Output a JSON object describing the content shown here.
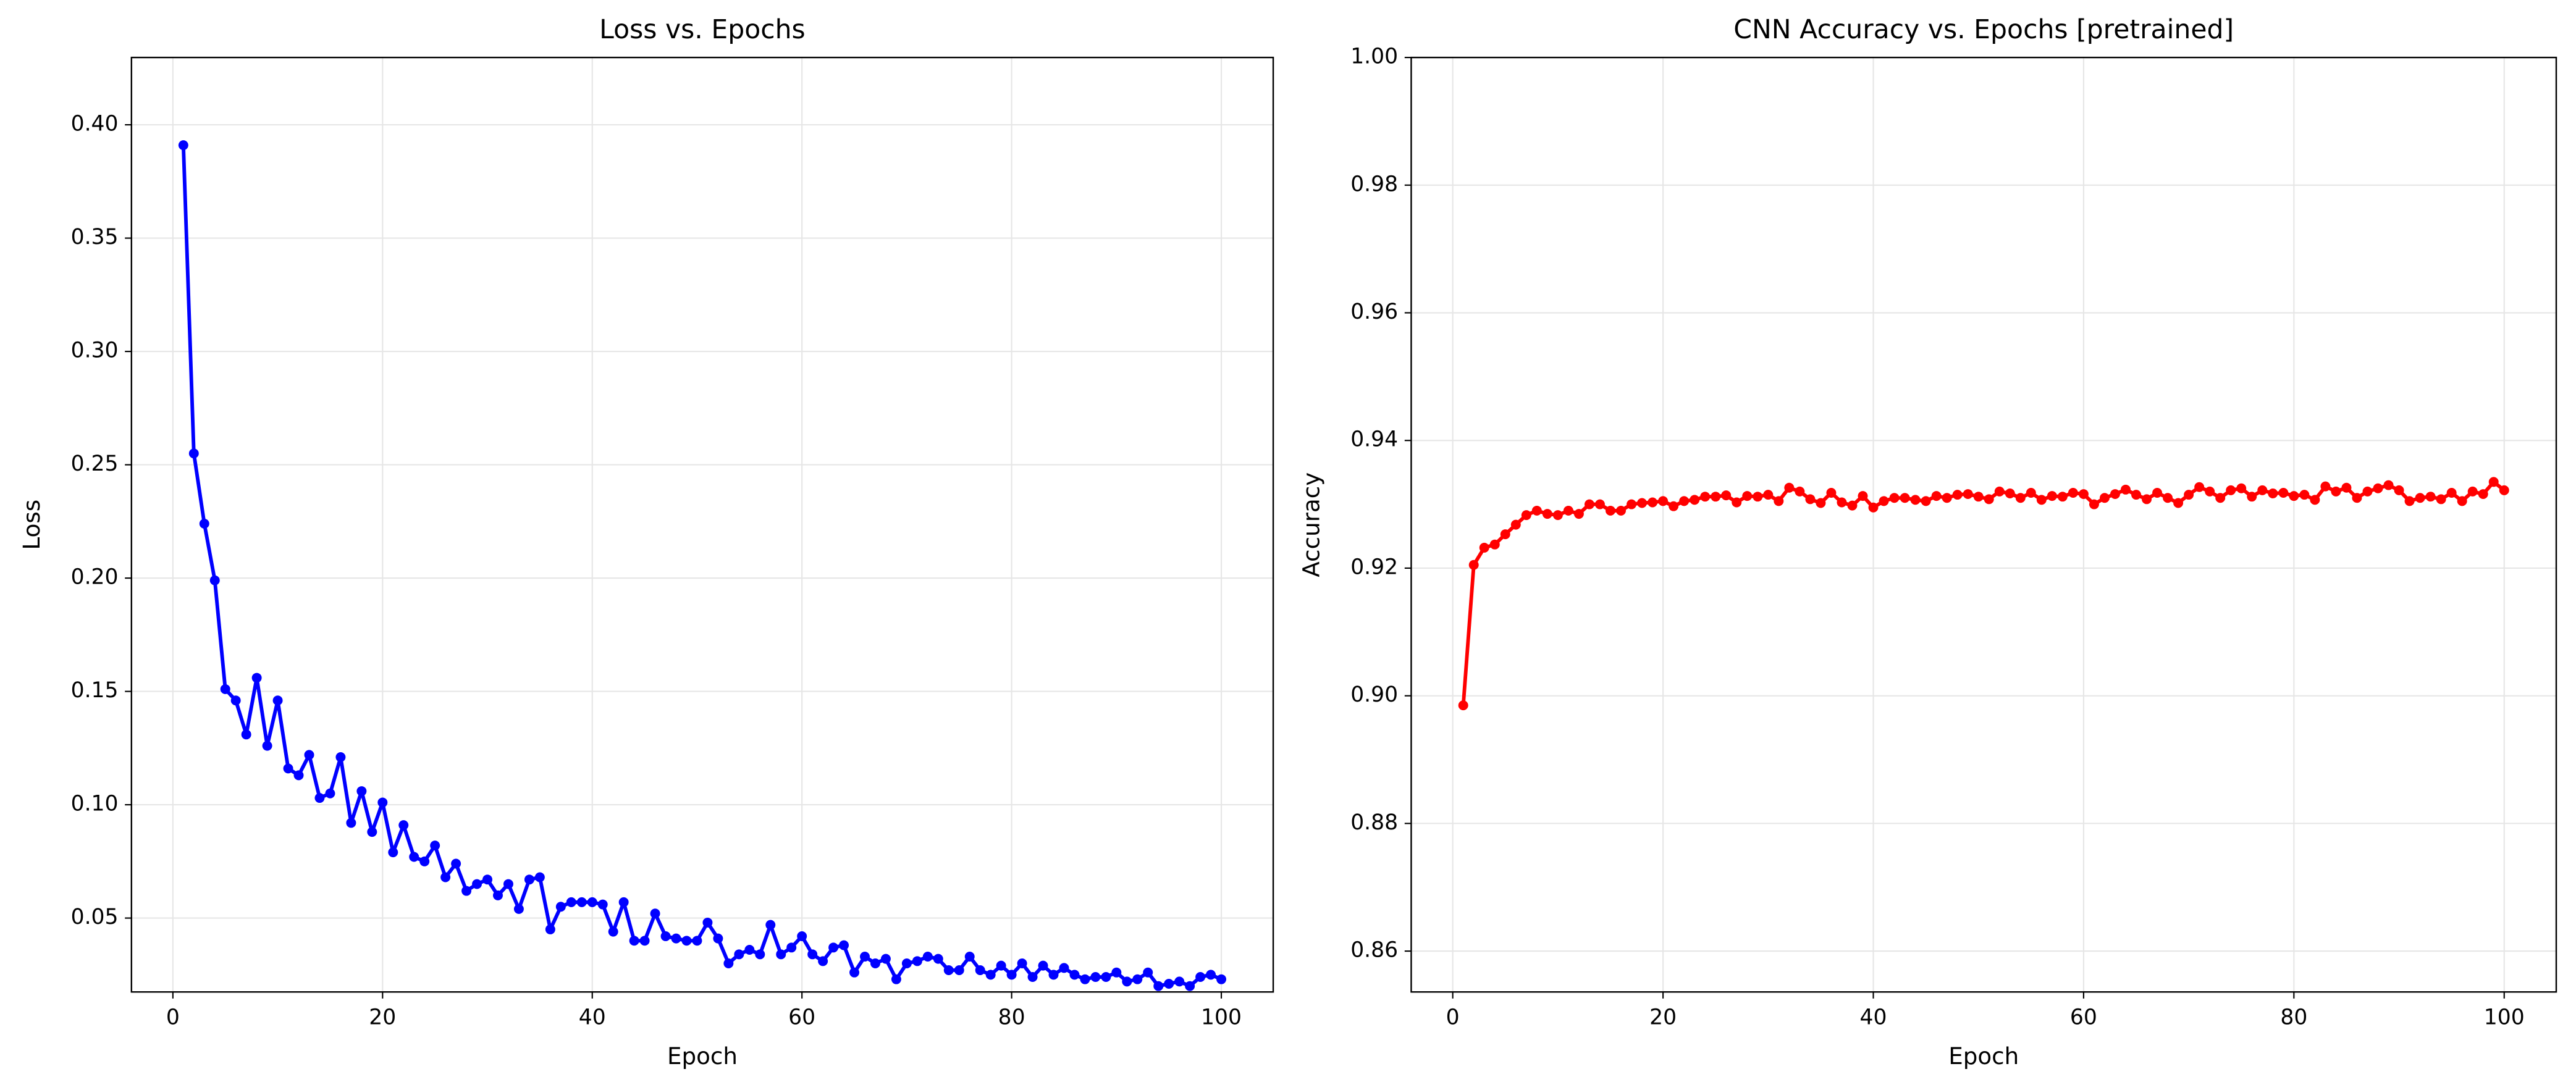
{
  "chart_data": [
    {
      "type": "line",
      "title": "Loss vs. Epochs",
      "xlabel": "Epoch",
      "ylabel": "Loss",
      "color": "#0000ff",
      "grid": true,
      "xlim": [
        -3.95,
        104.95
      ],
      "ylim": [
        0.0174,
        0.4297
      ],
      "xticks": [
        0,
        20,
        40,
        60,
        80,
        100
      ],
      "yticks": [
        0.05,
        {
          "value": 0.1,
          "label": "0.10"
        },
        0.15,
        {
          "value": 0.2,
          "label": "0.20"
        },
        0.25,
        {
          "value": 0.3,
          "label": "0.30"
        },
        0.35,
        {
          "value": 0.4,
          "label": "0.40"
        }
      ],
      "x": [
        1,
        2,
        3,
        4,
        5,
        6,
        7,
        8,
        9,
        10,
        11,
        12,
        13,
        14,
        15,
        16,
        17,
        18,
        19,
        20,
        21,
        22,
        23,
        24,
        25,
        26,
        27,
        28,
        29,
        30,
        31,
        32,
        33,
        34,
        35,
        36,
        37,
        38,
        39,
        40,
        41,
        42,
        43,
        44,
        45,
        46,
        47,
        48,
        49,
        50,
        51,
        52,
        53,
        54,
        55,
        56,
        57,
        58,
        59,
        60,
        61,
        62,
        63,
        64,
        65,
        66,
        67,
        68,
        69,
        70,
        71,
        72,
        73,
        74,
        75,
        76,
        77,
        78,
        79,
        80,
        81,
        82,
        83,
        84,
        85,
        86,
        87,
        88,
        89,
        90,
        91,
        92,
        93,
        94,
        95,
        96,
        97,
        98,
        99,
        100
      ],
      "values": [
        0.391,
        0.255,
        0.224,
        0.199,
        0.151,
        0.146,
        0.131,
        0.156,
        0.126,
        0.146,
        0.116,
        0.113,
        0.122,
        0.103,
        0.105,
        0.121,
        0.092,
        0.106,
        0.088,
        0.101,
        0.079,
        0.091,
        0.077,
        0.075,
        0.082,
        0.068,
        0.074,
        0.062,
        0.065,
        0.067,
        0.06,
        0.065,
        0.054,
        0.067,
        0.068,
        0.045,
        0.055,
        0.057,
        0.057,
        0.057,
        0.056,
        0.044,
        0.057,
        0.04,
        0.04,
        0.052,
        0.042,
        0.041,
        0.04,
        0.04,
        0.048,
        0.041,
        0.03,
        0.034,
        0.036,
        0.034,
        0.047,
        0.034,
        0.037,
        0.042,
        0.034,
        0.031,
        0.037,
        0.038,
        0.026,
        0.033,
        0.03,
        0.032,
        0.023,
        0.03,
        0.031,
        0.033,
        0.032,
        0.027,
        0.027,
        0.033,
        0.027,
        0.025,
        0.029,
        0.025,
        0.03,
        0.024,
        0.029,
        0.025,
        0.028,
        0.025,
        0.023,
        0.024,
        0.024,
        0.026,
        0.022,
        0.023,
        0.026,
        0.02,
        0.021,
        0.022,
        0.02,
        0.024,
        0.025,
        0.023
      ]
    },
    {
      "type": "line",
      "title": "CNN Accuracy vs. Epochs [pretrained]",
      "xlabel": "Epoch",
      "ylabel": "Accuracy",
      "color": "#ff0000",
      "grid": true,
      "xlim": [
        -3.95,
        104.95
      ],
      "ylim": [
        0.8536,
        1.0
      ],
      "xticks": [
        0,
        20,
        40,
        60,
        80,
        100
      ],
      "yticks": [
        0.86,
        0.88,
        {
          "value": 0.9,
          "label": "0.90"
        },
        0.92,
        0.94,
        0.96,
        0.98,
        {
          "value": 1.0,
          "label": "1.00"
        }
      ],
      "x": [
        1,
        2,
        3,
        4,
        5,
        6,
        7,
        8,
        9,
        10,
        11,
        12,
        13,
        14,
        15,
        16,
        17,
        18,
        19,
        20,
        21,
        22,
        23,
        24,
        25,
        26,
        27,
        28,
        29,
        30,
        31,
        32,
        33,
        34,
        35,
        36,
        37,
        38,
        39,
        40,
        41,
        42,
        43,
        44,
        45,
        46,
        47,
        48,
        49,
        50,
        51,
        52,
        53,
        54,
        55,
        56,
        57,
        58,
        59,
        60,
        61,
        62,
        63,
        64,
        65,
        66,
        67,
        68,
        69,
        70,
        71,
        72,
        73,
        74,
        75,
        76,
        77,
        78,
        79,
        80,
        81,
        82,
        83,
        84,
        85,
        86,
        87,
        88,
        89,
        90,
        91,
        92,
        93,
        94,
        95,
        96,
        97,
        98,
        99,
        100
      ],
      "values": [
        0.8985,
        0.9205,
        0.9232,
        0.9237,
        0.9253,
        0.9268,
        0.9283,
        0.929,
        0.9285,
        0.9283,
        0.929,
        0.9285,
        0.93,
        0.93,
        0.929,
        0.929,
        0.93,
        0.9302,
        0.9303,
        0.9305,
        0.9297,
        0.9305,
        0.9307,
        0.9312,
        0.9312,
        0.9314,
        0.9303,
        0.9313,
        0.9312,
        0.9315,
        0.9305,
        0.9326,
        0.932,
        0.9308,
        0.9302,
        0.9318,
        0.9303,
        0.9298,
        0.9313,
        0.9295,
        0.9305,
        0.931,
        0.931,
        0.9307,
        0.9305,
        0.9313,
        0.931,
        0.9315,
        0.9316,
        0.9312,
        0.9308,
        0.932,
        0.9317,
        0.931,
        0.9318,
        0.9307,
        0.9313,
        0.9312,
        0.9318,
        0.9316,
        0.93,
        0.931,
        0.9316,
        0.9323,
        0.9315,
        0.9308,
        0.9318,
        0.931,
        0.9302,
        0.9315,
        0.9327,
        0.932,
        0.931,
        0.9322,
        0.9325,
        0.9312,
        0.9322,
        0.9317,
        0.9318,
        0.9313,
        0.9315,
        0.9307,
        0.9328,
        0.932,
        0.9326,
        0.931,
        0.932,
        0.9325,
        0.933,
        0.9322,
        0.9305,
        0.931,
        0.9312,
        0.9308,
        0.9318,
        0.9305,
        0.932,
        0.9316,
        0.9335,
        0.9322
      ]
    }
  ]
}
